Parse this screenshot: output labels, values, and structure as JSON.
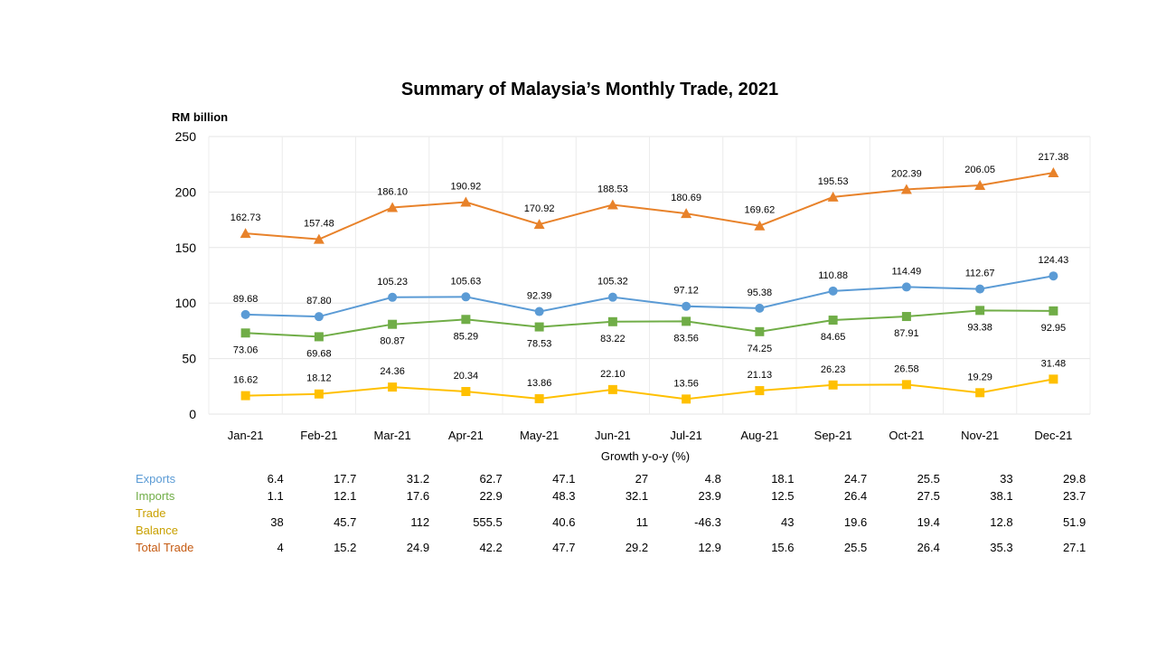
{
  "chart_data": {
    "type": "line",
    "title": "Summary of Malaysia’s Monthly Trade, 2021",
    "ylabel": "RM billion",
    "xlabel": "",
    "ylim": [
      0,
      250
    ],
    "yticks": [
      0,
      50,
      100,
      150,
      200,
      250
    ],
    "grid": true,
    "categories": [
      "Jan-21",
      "Feb-21",
      "Mar-21",
      "Apr-21",
      "May-21",
      "Jun-21",
      "Jul-21",
      "Aug-21",
      "Sep-21",
      "Oct-21",
      "Nov-21",
      "Dec-21"
    ],
    "series": [
      {
        "name": "Total Trade",
        "color": "#E8822A",
        "marker": "triangle",
        "label_pos": "above",
        "values": [
          162.73,
          157.48,
          186.1,
          190.92,
          170.92,
          188.53,
          180.69,
          169.62,
          195.53,
          202.39,
          206.05,
          217.38
        ],
        "labels": [
          "162.73",
          "157.48",
          "186.10",
          "190.92",
          "170.92",
          "188.53",
          "180.69",
          "169.62",
          "195.53",
          "202.39",
          "206.05",
          "217.38"
        ]
      },
      {
        "name": "Exports",
        "color": "#5B9BD5",
        "marker": "circle",
        "label_pos": "above",
        "values": [
          89.68,
          87.8,
          105.23,
          105.63,
          92.39,
          105.32,
          97.12,
          95.38,
          110.88,
          114.49,
          112.67,
          124.43
        ],
        "labels": [
          "89.68",
          "87.80",
          "105.23",
          "105.63",
          "92.39",
          "105.32",
          "97.12",
          "95.38",
          "110.88",
          "114.49",
          "112.67",
          "124.43"
        ]
      },
      {
        "name": "Imports",
        "color": "#70AD47",
        "marker": "square",
        "label_pos": "below",
        "values": [
          73.06,
          69.68,
          80.87,
          85.29,
          78.53,
          83.22,
          83.56,
          74.25,
          84.65,
          87.91,
          93.38,
          92.95
        ],
        "labels": [
          "73.06",
          "69.68",
          "80.87",
          "85.29",
          "78.53",
          "83.22",
          "83.56",
          "74.25",
          "84.65",
          "87.91",
          "93.38",
          "92.95"
        ]
      },
      {
        "name": "Trade Balance",
        "color": "#FFC000",
        "marker": "square",
        "label_pos": "above",
        "values": [
          16.62,
          18.12,
          24.36,
          20.34,
          13.86,
          22.1,
          13.56,
          21.13,
          26.23,
          26.58,
          19.29,
          31.48
        ],
        "labels": [
          "16.62",
          "18.12",
          "24.36",
          "20.34",
          "13.86",
          "22.10",
          "13.56",
          "21.13",
          "26.23",
          "26.58",
          "19.29",
          "31.48"
        ]
      }
    ]
  },
  "growth_table": {
    "caption": "Growth y-o-y (%)",
    "rows": [
      {
        "label": "Exports",
        "color": "#5B9BD5",
        "values": [
          "6.4",
          "17.7",
          "31.2",
          "62.7",
          "47.1",
          "27",
          "4.8",
          "18.1",
          "24.7",
          "25.5",
          "33",
          "29.8"
        ]
      },
      {
        "label": "Imports",
        "color": "#70AD47",
        "values": [
          "1.1",
          "12.1",
          "17.6",
          "22.9",
          "48.3",
          "32.1",
          "23.9",
          "12.5",
          "26.4",
          "27.5",
          "38.1",
          "23.7"
        ]
      },
      {
        "label": "Trade Balance",
        "color": "#C9A000",
        "values": [
          "38",
          "45.7",
          "112",
          "555.5",
          "40.6",
          "11",
          "-46.3",
          "43",
          "19.6",
          "19.4",
          "12.8",
          "51.9"
        ]
      },
      {
        "label": "Total Trade",
        "color": "#C55A11",
        "values": [
          "4",
          "15.2",
          "24.9",
          "42.2",
          "47.7",
          "29.2",
          "12.9",
          "15.6",
          "25.5",
          "26.4",
          "35.3",
          "27.1"
        ]
      }
    ]
  }
}
